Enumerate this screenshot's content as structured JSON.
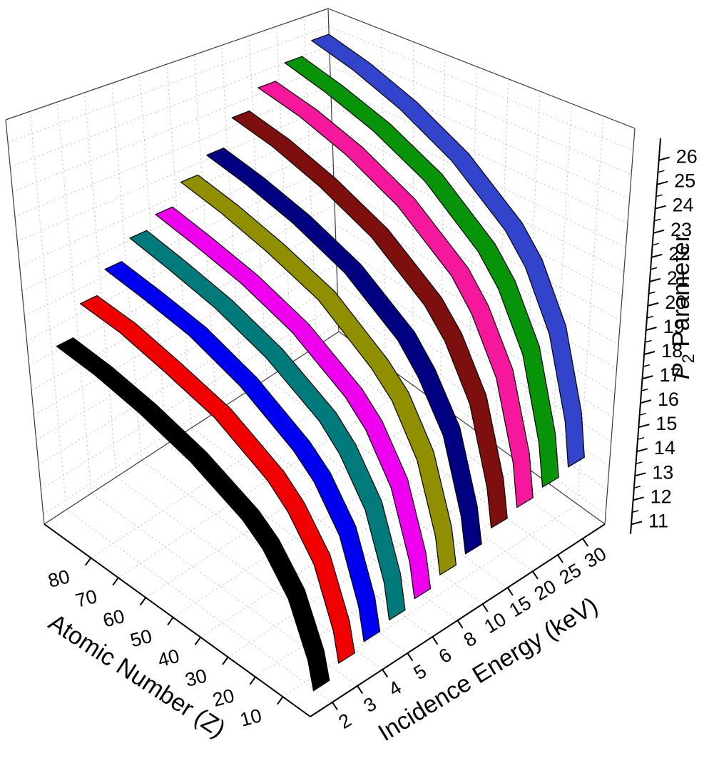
{
  "page": {
    "background": "#ffffff"
  },
  "chart_data": {
    "type": "ribbon3d",
    "title": "",
    "x_axis": {
      "label": "Incidence Energy (keV)",
      "tick_labels": [
        "2",
        "3",
        "4",
        "5",
        "6",
        "8",
        "10",
        "15",
        "20",
        "25",
        "30"
      ]
    },
    "y_axis": {
      "label": "Atomic Number (Z)",
      "ticks": [
        10,
        20,
        30,
        40,
        50,
        60,
        70,
        80
      ],
      "range": [
        0,
        97
      ]
    },
    "z_axis": {
      "label_full": "P2 Parameter",
      "label_pre": "P",
      "label_sub": "2",
      "label_post": "Parameter",
      "ticks": [
        11,
        12,
        13,
        14,
        15,
        16,
        17,
        18,
        19,
        20,
        21,
        22,
        23,
        24,
        25,
        26
      ],
      "range": [
        10.6,
        26.9
      ]
    },
    "atomic_number_points": [
      4,
      6,
      13,
      22,
      29,
      47,
      64,
      79,
      92
    ],
    "series": [
      {
        "energy_kev": 2,
        "color": "#000000",
        "p2": [
          10.9,
          11.8,
          13.5,
          14.7,
          15.3,
          16.3,
          17.0,
          17.5,
          17.8
        ]
      },
      {
        "energy_kev": 3,
        "color": "#f00000",
        "p2": [
          11.3,
          12.3,
          14.2,
          15.5,
          16.2,
          17.4,
          18.1,
          18.7,
          19.0
        ]
      },
      {
        "energy_kev": 4,
        "color": "#0000f0",
        "p2": [
          11.5,
          12.6,
          14.7,
          16.1,
          16.8,
          18.1,
          19.0,
          19.5,
          19.9
        ]
      },
      {
        "energy_kev": 5,
        "color": "#007a7a",
        "p2": [
          11.7,
          12.9,
          15.1,
          16.6,
          17.4,
          18.7,
          19.6,
          20.2,
          20.7
        ]
      },
      {
        "energy_kev": 6,
        "color": "#ee00ee",
        "p2": [
          11.9,
          13.1,
          15.4,
          17.0,
          17.8,
          19.2,
          20.1,
          20.7,
          21.2
        ]
      },
      {
        "energy_kev": 8,
        "color": "#8f8f00",
        "p2": [
          12.2,
          13.5,
          15.9,
          17.6,
          18.4,
          20.0,
          20.9,
          21.6,
          22.1
        ]
      },
      {
        "energy_kev": 10,
        "color": "#000080",
        "p2": [
          12.4,
          13.7,
          16.3,
          18.0,
          19.0,
          20.6,
          21.6,
          22.3,
          22.8
        ]
      },
      {
        "energy_kev": 15,
        "color": "#7d0f0f",
        "p2": [
          12.8,
          14.2,
          17.0,
          18.9,
          19.9,
          21.6,
          22.7,
          23.5,
          24.0
        ]
      },
      {
        "energy_kev": 20,
        "color": "#f5189c",
        "p2": [
          13.0,
          14.6,
          17.5,
          19.5,
          20.6,
          22.4,
          23.6,
          24.4,
          24.9
        ]
      },
      {
        "energy_kev": 25,
        "color": "#089408",
        "p2": [
          13.2,
          14.8,
          17.9,
          20.0,
          21.1,
          23.0,
          24.2,
          25.0,
          25.6
        ]
      },
      {
        "energy_kev": 30,
        "color": "#3344cc",
        "p2": [
          13.4,
          15.1,
          18.2,
          20.4,
          21.5,
          23.4,
          24.7,
          25.6,
          26.2
        ]
      }
    ],
    "grid": true,
    "grid_color": "#bdbdbd",
    "axis_color": "#000000",
    "edge_color": "#3a3a3a",
    "background": "#ffffff"
  }
}
